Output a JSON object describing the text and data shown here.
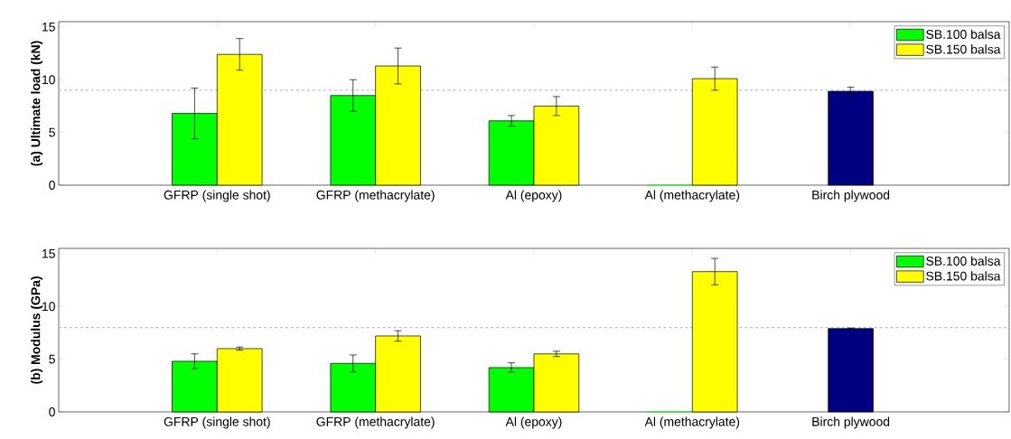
{
  "chart_data": [
    {
      "type": "bar",
      "ylabel": "(a) Ultimate load (kN)",
      "categories": [
        "GFRP (single shot)",
        "GFRP (methacrylate)",
        "Al (epoxy)",
        "Al (methacrylate)",
        "Birch plywood"
      ],
      "series": [
        {
          "name": "SB.100 balsa",
          "color": "#00ff00",
          "values": [
            6.8,
            8.5,
            6.1,
            0,
            null
          ],
          "errors": [
            2.4,
            1.5,
            0.5,
            null,
            null
          ]
        },
        {
          "name": "SB.150 balsa",
          "color": "#ffff00",
          "values": [
            12.4,
            11.3,
            7.5,
            10.1,
            null
          ],
          "errors": [
            1.5,
            1.7,
            0.9,
            1.1,
            null
          ]
        },
        {
          "color": "#000080",
          "values": [
            null,
            null,
            null,
            null,
            8.9
          ],
          "errors": [
            null,
            null,
            null,
            null,
            0.4
          ]
        }
      ],
      "ylim": [
        0,
        15.5
      ],
      "yticks": [
        0,
        5,
        10,
        15
      ],
      "ref_lines": [
        {
          "axis": "y",
          "value": 9.0,
          "color": "#c0c0c0",
          "line_style": "dashed"
        }
      ],
      "legend": "top right"
    },
    {
      "type": "bar",
      "ylabel": "(b) Modulus (GPa)",
      "categories": [
        "GFRP (single shot)",
        "GFRP (methacrylate)",
        "Al (epoxy)",
        "Al (methacrylate)",
        "Birch plywood"
      ],
      "series": [
        {
          "name": "SB.100 balsa",
          "color": "#00ff00",
          "values": [
            4.8,
            4.6,
            4.2,
            0,
            null
          ],
          "errors": [
            0.7,
            0.8,
            0.45,
            null,
            null
          ]
        },
        {
          "name": "SB.150 balsa",
          "color": "#ffff00",
          "values": [
            6.0,
            7.2,
            5.5,
            13.3,
            null
          ],
          "errors": [
            0.15,
            0.5,
            0.25,
            1.25,
            null
          ]
        },
        {
          "color": "#000080",
          "values": [
            null,
            null,
            null,
            null,
            7.9
          ],
          "errors": [
            null,
            null,
            null,
            null,
            0.05
          ]
        }
      ],
      "ylim": [
        0,
        15.5
      ],
      "yticks": [
        0,
        5,
        10,
        15
      ],
      "ref_lines": [
        {
          "axis": "y",
          "value": 8.0,
          "color": "#c0c0c0",
          "line_style": "dashed"
        }
      ],
      "legend": "top right"
    }
  ]
}
